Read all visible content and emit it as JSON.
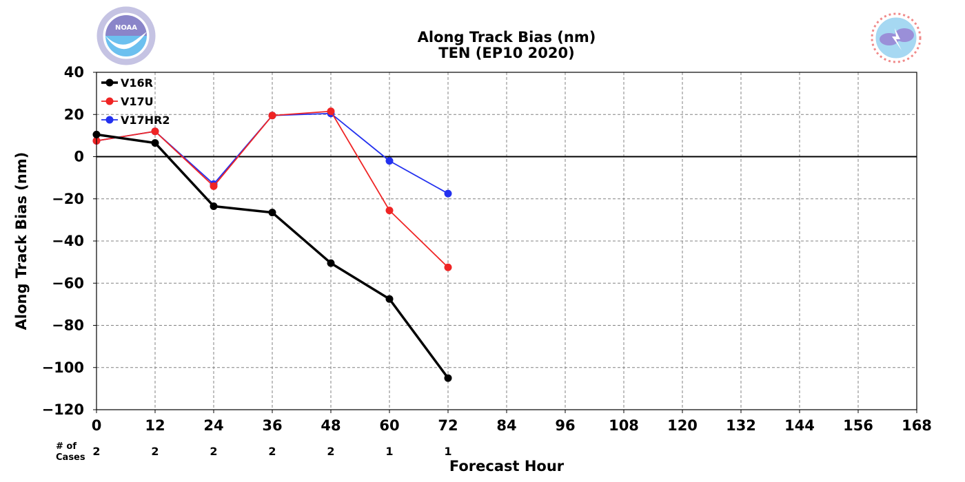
{
  "logos": {
    "left": {
      "name": "noaa-logo",
      "text": "NOAA",
      "colors": {
        "top": "#8a85c9",
        "bottom": "#6cc0ef",
        "ring": "#c5c3e3"
      }
    },
    "right": {
      "name": "nws-logo",
      "text": "NATIONAL WEATHER SERVICE",
      "colors": {
        "ring": "#f08a8a",
        "cloud": "#9a8fd8",
        "sky": "#a6d8f2"
      }
    }
  },
  "colors": {
    "V16R": "#000000",
    "V17U": "#ef2424",
    "V17HR2": "#2331ef",
    "grid": "#808080",
    "zero_line": "#000000"
  },
  "chart_data": {
    "type": "line",
    "title": "Along Track Bias (nm)",
    "subtitle": "TEN (EP10 2020)",
    "xlabel": "Forecast Hour",
    "ylabel": "Along Track Bias (nm)",
    "xlim": [
      0,
      168
    ],
    "ylim": [
      -120,
      40
    ],
    "xticks": [
      "0",
      "12",
      "24",
      "36",
      "48",
      "60",
      "72",
      "84",
      "96",
      "108",
      "120",
      "132",
      "144",
      "156",
      "168"
    ],
    "yticks": [
      "40",
      "20",
      "0",
      "−20",
      "−40",
      "−60",
      "−80",
      "−100",
      "−120"
    ],
    "grid": true,
    "legend_position": "top-left",
    "series": [
      {
        "name": "V16R",
        "x": [
          0,
          12,
          24,
          36,
          48,
          60,
          72
        ],
        "values": [
          10.5,
          6.5,
          -23.5,
          -26.5,
          -50.5,
          -67.5,
          -105.0
        ]
      },
      {
        "name": "V17U",
        "x": [
          0,
          12,
          24,
          36,
          48,
          60,
          72
        ],
        "values": [
          7.5,
          12.0,
          -14.0,
          19.5,
          21.5,
          -25.5,
          -52.5
        ]
      },
      {
        "name": "V17HR2",
        "x": [
          0,
          12,
          24,
          36,
          48,
          60,
          72
        ],
        "values": [
          7.5,
          12.0,
          -13.0,
          19.5,
          20.5,
          -2.0,
          -17.5
        ]
      }
    ],
    "cases": {
      "label_line1": "# of",
      "label_line2": "Cases",
      "x": [
        0,
        12,
        24,
        36,
        48,
        60,
        72
      ],
      "values": [
        "2",
        "2",
        "2",
        "2",
        "2",
        "1",
        "1"
      ]
    }
  }
}
